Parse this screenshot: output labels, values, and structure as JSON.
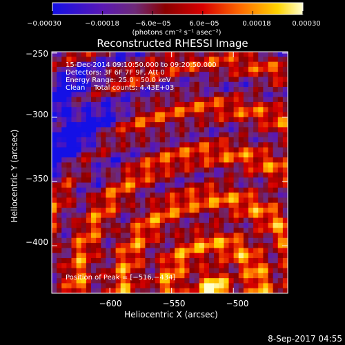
{
  "chart_data": {
    "type": "heatmap",
    "title": "Reconstructed RHESSI Image",
    "xlabel": "Heliocentric X (arcsec)",
    "ylabel": "Heliocentric Y (arcsec)",
    "xlim": [
      -647,
      -456
    ],
    "ylim": [
      -437,
      -249
    ],
    "x_ticks": [
      -600,
      -550,
      -500
    ],
    "x_tick_labels": [
      "−600",
      "−550",
      "−500"
    ],
    "y_ticks": [
      -250,
      -300,
      -350,
      -400
    ],
    "y_tick_labels": [
      "−250",
      "−300",
      "−350",
      "−400"
    ],
    "colorbar": {
      "range": [
        -0.0003,
        0.0003
      ],
      "ticks": [
        -0.0003,
        -0.00018,
        -6e-05,
        6e-05,
        0.00018,
        0.0003
      ],
      "tick_labels": [
        "−0.00030",
        "−0.00018",
        "−6.0e−05",
        "6.0e−05",
        "0.00018",
        "0.00030"
      ],
      "unit_label": "(photons cm⁻² s⁻¹ asec⁻²)",
      "colors": [
        "#1410e6",
        "#5a18b4",
        "#6e2a78",
        "#8a0000",
        "#d80000",
        "#ff6a00",
        "#ffd400",
        "#ffffd0"
      ]
    },
    "annotations": [
      "15-Dec-2014 09:10:50.000 to 09:20:50.000",
      "Detectors: 3F 6F 7F 9F, Att 0",
      "Energy Range: 25.0 - 50.0 keV",
      "Clean    Total counts: 4.43E+03"
    ],
    "peak_label": "Position of Peak = [−516,−434]",
    "peak": [
      -516,
      -434
    ],
    "grid": false
  },
  "footer": {
    "date": "8-Sep-2017 04:55"
  }
}
